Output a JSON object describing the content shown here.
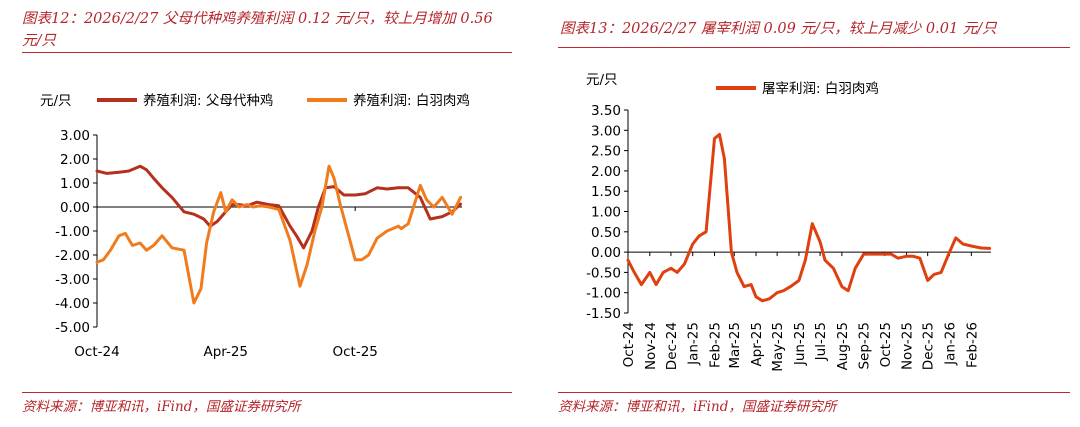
{
  "left": {
    "title": "图表12：2026/2/27 父母代种鸡养殖利润 0.12 元/只，较上月增加 0.56 元/只",
    "source": "资料来源：博亚和讯，iFind，国盛证券研究所"
  },
  "right": {
    "title": "图表13：2026/2/27 屠宰利润 0.09 元/只，较上月减少 0.01 元/只",
    "source": "资料来源：博亚和讯，iFind，国盛证券研究所"
  },
  "chart_data": [
    {
      "type": "line",
      "ylabel": "元/只",
      "ylim": [
        -5,
        3
      ],
      "yticks": [
        "3.00",
        "2.00",
        "1.00",
        "0.00",
        "-1.00",
        "-2.00",
        "-3.00",
        "-4.00",
        "-5.00"
      ],
      "xticks": [
        "Oct-24",
        "Apr-25",
        "Oct-25"
      ],
      "x_range": [
        "2024-10",
        "2026-02"
      ],
      "legend": "top",
      "series": [
        {
          "name": "养殖利润: 父母代种鸡",
          "color": "#b5301d",
          "x": [
            "2024-10-01",
            "2024-10-15",
            "2024-11-01",
            "2024-11-15",
            "2024-12-01",
            "2024-12-10",
            "2024-12-20",
            "2025-01-01",
            "2025-01-15",
            "2025-02-01",
            "2025-02-15",
            "2025-03-01",
            "2025-03-10",
            "2025-03-20",
            "2025-04-01",
            "2025-04-10",
            "2025-04-20",
            "2025-05-01",
            "2025-05-15",
            "2025-06-01",
            "2025-06-15",
            "2025-07-01",
            "2025-07-10",
            "2025-07-20",
            "2025-08-01",
            "2025-08-10",
            "2025-08-20",
            "2025-09-01",
            "2025-09-15",
            "2025-10-01",
            "2025-10-15",
            "2025-11-01",
            "2025-11-15",
            "2025-12-01",
            "2025-12-15",
            "2026-01-01",
            "2026-01-15",
            "2026-02-01",
            "2026-02-15",
            "2026-02-27"
          ],
          "y": [
            1.5,
            1.4,
            1.45,
            1.5,
            1.7,
            1.55,
            1.2,
            0.8,
            0.4,
            -0.2,
            -0.3,
            -0.5,
            -0.8,
            -0.6,
            -0.2,
            0.1,
            0.1,
            0.05,
            0.2,
            0.1,
            0.05,
            -0.8,
            -1.2,
            -1.7,
            -1.0,
            0.0,
            0.8,
            0.85,
            0.5,
            0.5,
            0.55,
            0.8,
            0.75,
            0.8,
            0.8,
            0.4,
            -0.5,
            -0.4,
            -0.2,
            0.12
          ]
        },
        {
          "name": "养殖利润: 白羽肉鸡",
          "color": "#f07c1e",
          "x": [
            "2024-10-01",
            "2024-10-10",
            "2024-10-20",
            "2024-11-01",
            "2024-11-10",
            "2024-11-20",
            "2024-12-01",
            "2024-12-10",
            "2024-12-20",
            "2025-01-01",
            "2025-01-15",
            "2025-02-01",
            "2025-02-15",
            "2025-02-25",
            "2025-03-05",
            "2025-03-15",
            "2025-03-25",
            "2025-04-01",
            "2025-04-10",
            "2025-04-20",
            "2025-05-01",
            "2025-05-10",
            "2025-05-20",
            "2025-06-01",
            "2025-06-15",
            "2025-07-01",
            "2025-07-15",
            "2025-07-25",
            "2025-08-05",
            "2025-08-15",
            "2025-08-25",
            "2025-09-01",
            "2025-09-10",
            "2025-09-20",
            "2025-10-01",
            "2025-10-10",
            "2025-10-20",
            "2025-11-01",
            "2025-11-15",
            "2025-12-01",
            "2025-12-05",
            "2025-12-15",
            "2026-01-01",
            "2026-01-10",
            "2026-01-20",
            "2026-02-01",
            "2026-02-15",
            "2026-02-27"
          ],
          "y": [
            -2.3,
            -2.2,
            -1.8,
            -1.2,
            -1.1,
            -1.6,
            -1.5,
            -1.8,
            -1.6,
            -1.2,
            -1.7,
            -1.8,
            -4.0,
            -3.4,
            -1.5,
            -0.2,
            0.6,
            -0.2,
            0.3,
            0.0,
            0.1,
            0.0,
            0.05,
            0.0,
            -0.1,
            -1.4,
            -3.3,
            -2.4,
            -1.0,
            0.0,
            1.7,
            1.2,
            0.1,
            -1.0,
            -2.2,
            -2.2,
            -2.0,
            -1.3,
            -1.0,
            -0.8,
            -0.9,
            -0.7,
            0.9,
            0.3,
            0.0,
            0.4,
            -0.3,
            0.4
          ]
        }
      ]
    },
    {
      "type": "line",
      "ylabel": "元/只",
      "ylim": [
        -1.5,
        3.5
      ],
      "yticks": [
        "3.50",
        "3.00",
        "2.50",
        "2.00",
        "1.50",
        "1.00",
        "0.50",
        "0.00",
        "-0.50",
        "-1.00",
        "-1.50"
      ],
      "xticks": [
        "Oct-24",
        "Nov-24",
        "Dec-24",
        "Jan-25",
        "Feb-25",
        "Mar-25",
        "Apr-25",
        "May-25",
        "Jun-25",
        "Jul-25",
        "Aug-25",
        "Sep-25",
        "Oct-25",
        "Nov-25",
        "Dec-25",
        "Jan-26",
        "Feb-26"
      ],
      "x_range": [
        "2024-10",
        "2026-02"
      ],
      "legend": "top",
      "series": [
        {
          "name": "屠宰利润: 白羽肉鸡",
          "color": "#e0400f",
          "x": [
            "2024-10-01",
            "2024-10-10",
            "2024-10-20",
            "2024-11-01",
            "2024-11-10",
            "2024-11-20",
            "2024-12-01",
            "2024-12-10",
            "2024-12-20",
            "2025-01-01",
            "2025-01-10",
            "2025-01-20",
            "2025-02-01",
            "2025-02-08",
            "2025-02-15",
            "2025-02-25",
            "2025-03-05",
            "2025-03-15",
            "2025-03-25",
            "2025-04-01",
            "2025-04-10",
            "2025-04-20",
            "2025-05-01",
            "2025-05-10",
            "2025-05-20",
            "2025-06-01",
            "2025-06-10",
            "2025-06-20",
            "2025-07-01",
            "2025-07-08",
            "2025-07-20",
            "2025-08-01",
            "2025-08-10",
            "2025-08-20",
            "2025-09-01",
            "2025-09-10",
            "2025-09-20",
            "2025-10-01",
            "2025-10-10",
            "2025-10-20",
            "2025-11-01",
            "2025-11-10",
            "2025-11-20",
            "2025-12-01",
            "2025-12-10",
            "2025-12-20",
            "2026-01-01",
            "2026-01-10",
            "2026-01-20",
            "2026-02-01",
            "2026-02-15",
            "2026-02-27"
          ],
          "y": [
            -0.2,
            -0.5,
            -0.8,
            -0.5,
            -0.8,
            -0.5,
            -0.4,
            -0.5,
            -0.3,
            0.2,
            0.4,
            0.5,
            2.8,
            2.9,
            2.3,
            0.0,
            -0.5,
            -0.85,
            -0.8,
            -1.1,
            -1.2,
            -1.15,
            -1.0,
            -0.95,
            -0.85,
            -0.7,
            -0.2,
            0.7,
            0.25,
            -0.2,
            -0.4,
            -0.85,
            -0.95,
            -0.4,
            -0.05,
            -0.05,
            -0.05,
            -0.05,
            -0.05,
            -0.15,
            -0.1,
            -0.1,
            -0.15,
            -0.7,
            -0.55,
            -0.5,
            0.0,
            0.35,
            0.2,
            0.15,
            0.1,
            0.09
          ]
        }
      ]
    }
  ]
}
